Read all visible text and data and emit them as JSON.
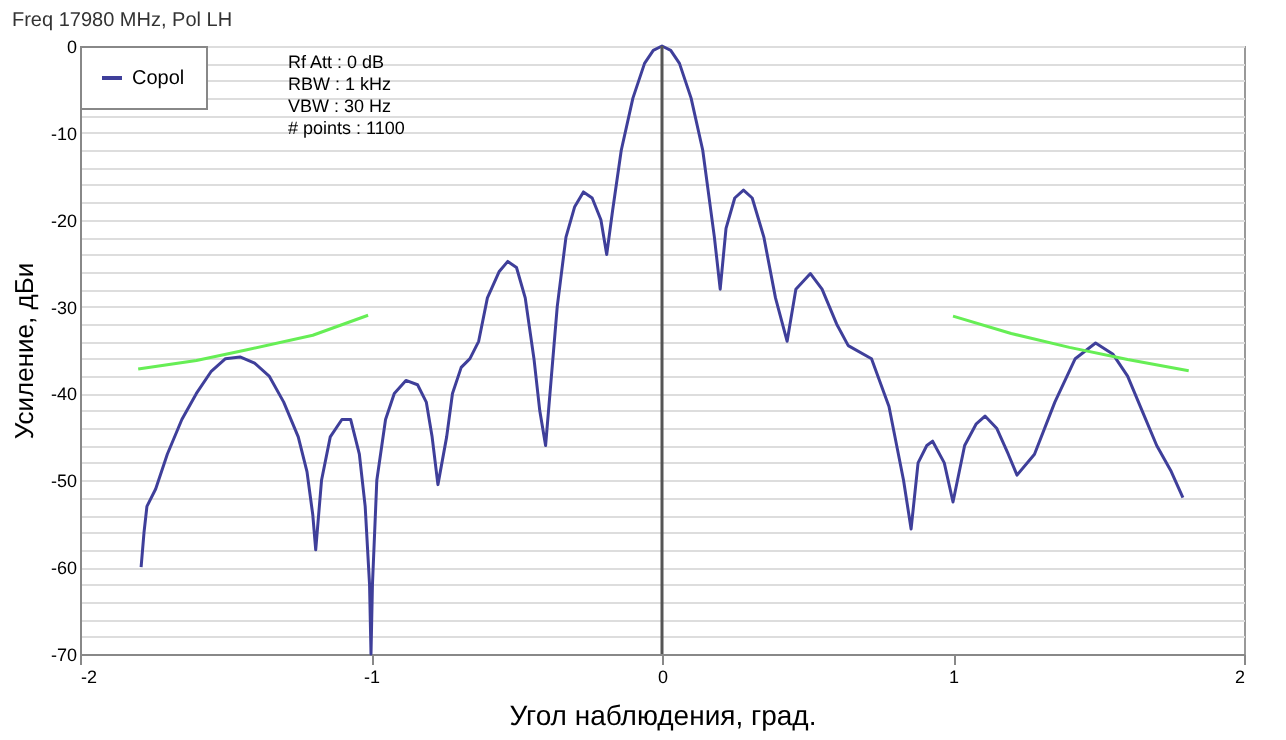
{
  "chart_data": {
    "type": "line",
    "title": "Freq 17980 MHz, Pol LH",
    "xlabel": "Угол наблюдения, град.",
    "ylabel": "Усиление, дБи",
    "xlim": [
      -2,
      2
    ],
    "xticks": [
      -2,
      -1,
      0,
      1,
      2
    ],
    "ylim": [
      -70,
      0
    ],
    "yticks": [
      0,
      {
        "value": -2,
        "label": null
      },
      {
        "value": -4,
        "label": null
      },
      {
        "value": -6,
        "label": null
      },
      {
        "value": -8,
        "label": null
      },
      -10,
      {
        "value": -12,
        "label": null
      },
      {
        "value": -14,
        "label": null
      },
      {
        "value": -16,
        "label": null
      },
      {
        "value": -18,
        "label": null
      },
      -20,
      {
        "value": -22,
        "label": null
      },
      {
        "value": -24,
        "label": null
      },
      {
        "value": -26,
        "label": null
      },
      {
        "value": -28,
        "label": null
      },
      -30,
      {
        "value": -32,
        "label": null
      },
      {
        "value": -34,
        "label": null
      },
      {
        "value": -36,
        "label": null
      },
      {
        "value": -38,
        "label": null
      },
      -40,
      {
        "value": -42,
        "label": null
      },
      {
        "value": -44,
        "label": null
      },
      {
        "value": -46,
        "label": null
      },
      {
        "value": -48,
        "label": null
      },
      -50,
      {
        "value": -52,
        "label": null
      },
      {
        "value": -54,
        "label": null
      },
      {
        "value": -56,
        "label": null
      },
      {
        "value": -58,
        "label": null
      },
      -60,
      {
        "value": -62,
        "label": null
      },
      {
        "value": -64,
        "label": null
      },
      {
        "value": -66,
        "label": null
      },
      {
        "value": -68,
        "label": null
      },
      -70
    ],
    "grid": "y",
    "legend": "top left",
    "line_style": "solid",
    "marker": "none",
    "ref_lines": [
      {
        "axis": "x",
        "value": 0,
        "color": "#555555"
      }
    ],
    "annotations": [
      "Rf Att : 0 dB",
      "RBW : 1 kHz",
      "VBW : 30 Hz",
      "# points : 1100"
    ],
    "series": [
      {
        "name": "Copol",
        "color": "#3f3f9a",
        "x": [
          -1.79,
          -1.78,
          -1.77,
          -1.74,
          -1.7,
          -1.65,
          -1.6,
          -1.55,
          -1.5,
          -1.45,
          -1.4,
          -1.35,
          -1.3,
          -1.25,
          -1.22,
          -1.2,
          -1.19,
          -1.17,
          -1.14,
          -1.1,
          -1.07,
          -1.04,
          -1.02,
          -1.005,
          -1.0,
          -0.995,
          -0.98,
          -0.95,
          -0.92,
          -0.88,
          -0.84,
          -0.81,
          -0.79,
          -0.77,
          -0.74,
          -0.72,
          -0.69,
          -0.66,
          -0.63,
          -0.6,
          -0.56,
          -0.53,
          -0.5,
          -0.47,
          -0.44,
          -0.42,
          -0.4,
          -0.38,
          -0.36,
          -0.33,
          -0.3,
          -0.27,
          -0.24,
          -0.21,
          -0.19,
          -0.17,
          -0.14,
          -0.1,
          -0.06,
          -0.03,
          0,
          0.03,
          0.06,
          0.1,
          0.14,
          0.18,
          0.2,
          0.22,
          0.25,
          0.28,
          0.31,
          0.35,
          0.39,
          0.43,
          0.46,
          0.51,
          0.55,
          0.6,
          0.64,
          0.72,
          0.78,
          0.83,
          0.856,
          0.88,
          0.91,
          0.93,
          0.97,
          1.0,
          1.04,
          1.08,
          1.11,
          1.15,
          1.19,
          1.22,
          1.28,
          1.35,
          1.42,
          1.49,
          1.55,
          1.6,
          1.65,
          1.7,
          1.75,
          1.79
        ],
        "values": [
          -60,
          -56,
          -53,
          -51,
          -47,
          -43,
          -40,
          -37.5,
          -36,
          -35.8,
          -36.5,
          -38,
          -41,
          -45,
          -49,
          -54,
          -58,
          -50,
          -45,
          -43,
          -43,
          -47,
          -53,
          -62,
          -70,
          -62,
          -50,
          -43,
          -40,
          -38.5,
          -39,
          -41,
          -45,
          -50.5,
          -45,
          -40,
          -37,
          -36,
          -34,
          -29,
          -26,
          -24.8,
          -25.5,
          -29,
          -36,
          -42,
          -46,
          -38,
          -30,
          -22,
          -18.5,
          -16.8,
          -17.5,
          -20,
          -24,
          -19,
          -12,
          -6,
          -2,
          -0.5,
          0,
          -0.5,
          -2,
          -6,
          -12,
          -22,
          -28,
          -21,
          -17.5,
          -16.6,
          -17.5,
          -22,
          -29,
          -34,
          -28,
          -26.2,
          -28,
          -32,
          -34.5,
          -36,
          -41.5,
          -50,
          -55.6,
          -48,
          -46,
          -45.5,
          -48,
          -52.5,
          -46,
          -43.5,
          -42.6,
          -44,
          -47,
          -49.4,
          -47,
          -41,
          -36,
          -34.2,
          -35.5,
          -38,
          -42,
          -46,
          -49,
          -52
        ]
      },
      {
        "color": "#66ee55",
        "x": [
          -1.8,
          -1.6,
          -1.43,
          -1.2,
          -1.01
        ],
        "values": [
          -37.2,
          -36.2,
          -35,
          -33.3,
          -31
        ]
      },
      {
        "color": "#66ee55",
        "x": [
          1.0,
          1.2,
          1.4,
          1.6,
          1.81
        ],
        "values": [
          -31.1,
          -33.1,
          -34.7,
          -36.1,
          -37.4
        ]
      }
    ]
  }
}
